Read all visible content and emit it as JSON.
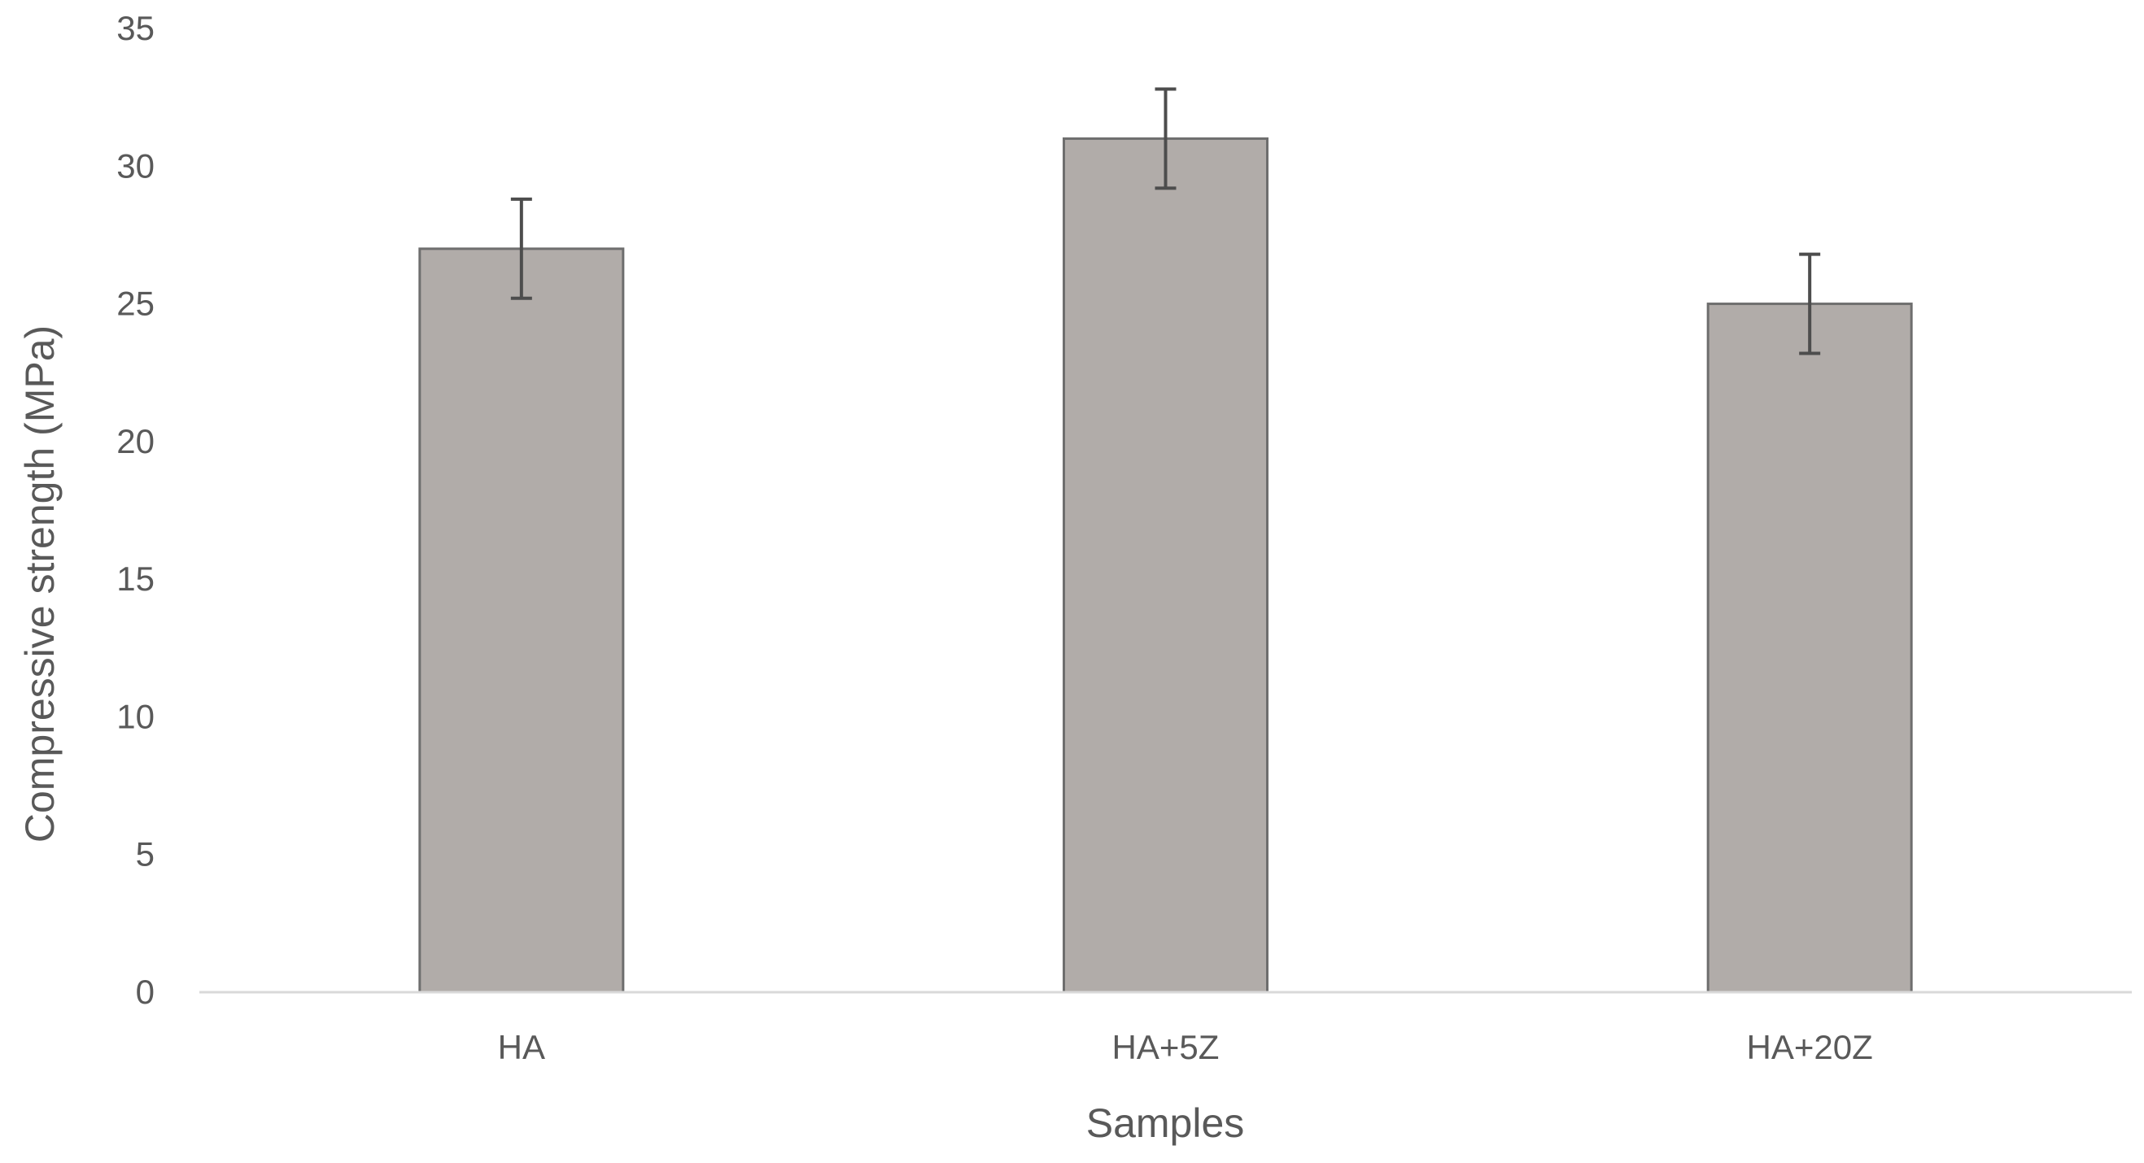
{
  "chart_data": {
    "type": "bar",
    "title": "",
    "xlabel": "Samples",
    "ylabel": "Compressive strength (MPa)",
    "categories": [
      "HA",
      "HA+5Z",
      "HA+20Z"
    ],
    "values": [
      27,
      31,
      25
    ],
    "error": [
      1.8,
      1.8,
      1.8
    ],
    "ylim": [
      0,
      35
    ],
    "yticks": [
      "0",
      "5",
      "10",
      "15",
      "20",
      "25",
      "30",
      "35"
    ],
    "grid": false,
    "legend": "none",
    "colors": {
      "bar_fill": "#b1aca9",
      "bar_stroke": "#6e6e6e",
      "error_bar": "#4d4d4d",
      "axis_line": "#d9d9d9",
      "text": "#595959"
    }
  }
}
